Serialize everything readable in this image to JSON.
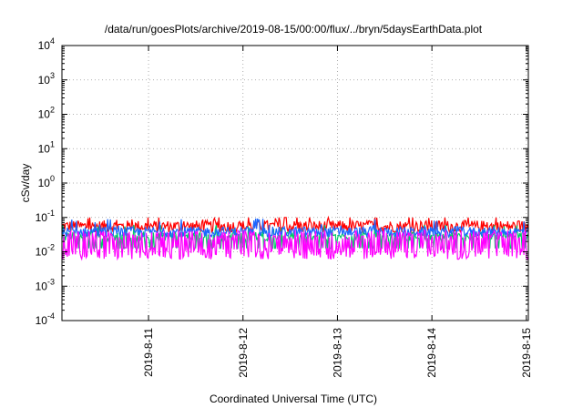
{
  "chart_data": {
    "type": "line",
    "title": "/data/run/goesPlots/archive/2019-08-15/00:00/flux/../bryn/5daysEarthData.plot",
    "xlabel": "Coordinated Universal Time (UTC)",
    "ylabel": "cSv/day",
    "y_scale": "log",
    "ylim": [
      0.0001,
      10000
    ],
    "y_ticks": [
      {
        "value": 0.0001,
        "base": "10",
        "exp": "-4"
      },
      {
        "value": 0.001,
        "base": "10",
        "exp": "-3"
      },
      {
        "value": 0.01,
        "base": "10",
        "exp": "-2"
      },
      {
        "value": 0.1,
        "base": "10",
        "exp": "-1"
      },
      {
        "value": 1,
        "base": "10",
        "exp": "0"
      },
      {
        "value": 10,
        "base": "10",
        "exp": "1"
      },
      {
        "value": 100,
        "base": "10",
        "exp": "2"
      },
      {
        "value": 1000,
        "base": "10",
        "exp": "3"
      },
      {
        "value": 10000,
        "base": "10",
        "exp": "4"
      }
    ],
    "x_range_days": [
      "2019-08-10T02:00",
      "2019-08-15T00:30"
    ],
    "x_ticks": [
      "2019-8-11",
      "2019-8-12",
      "2019-8-13",
      "2019-8-14",
      "2019-8-15"
    ],
    "grid": true,
    "series": [
      {
        "color": "#ff0000",
        "base": 0.055,
        "spread": 0.35,
        "spike_max": 0.1
      },
      {
        "color": "#00cc66",
        "base": 0.028,
        "spread": 0.25,
        "spike_max": 0.06
      },
      {
        "color": "#1a66ff",
        "base": 0.038,
        "spread": 0.3,
        "spike_max": 0.13
      },
      {
        "color": "#ff00ff",
        "base": 0.009,
        "spread": 0.35,
        "spike_max": 0.05
      }
    ]
  }
}
